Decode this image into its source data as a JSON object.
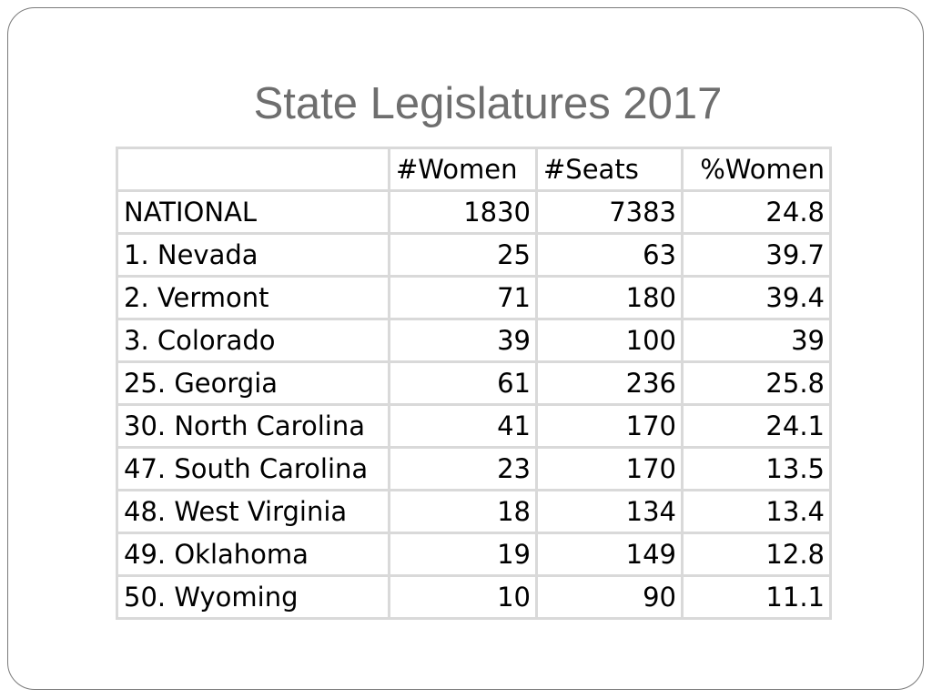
{
  "title": "State Legislatures 2017",
  "table": {
    "headers": [
      "",
      "#Women",
      "#Seats",
      "%Women"
    ],
    "rows": [
      [
        "NATIONAL",
        "1830",
        "7383",
        "24.8"
      ],
      [
        "1. Nevada",
        "25",
        "63",
        "39.7"
      ],
      [
        "2. Vermont",
        "71",
        "180",
        "39.4"
      ],
      [
        "3. Colorado",
        "39",
        "100",
        "39"
      ],
      [
        "25. Georgia",
        "61",
        "236",
        "25.8"
      ],
      [
        "30. North Carolina",
        "41",
        "170",
        "24.1"
      ],
      [
        "47. South Carolina",
        "23",
        "170",
        "13.5"
      ],
      [
        "48. West Virginia",
        "18",
        "134",
        "13.4"
      ],
      [
        "49. Oklahoma",
        "19",
        "149",
        "12.8"
      ],
      [
        "50. Wyoming",
        "10",
        "90",
        "11.1"
      ]
    ]
  },
  "colors": {
    "title": "#6e6e6e",
    "grid": "#d9d9d9",
    "frame": "#7a7a7a"
  }
}
